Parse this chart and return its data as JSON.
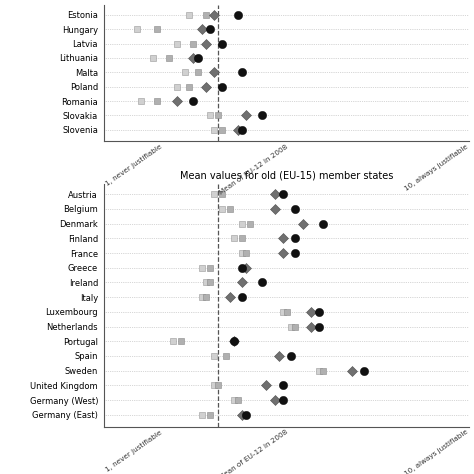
{
  "eu12_countries": [
    "Estonia",
    "Hungary",
    "Latvia",
    "Lithuania",
    "Malta",
    "Poland",
    "Romania",
    "Slovakia",
    "Slovenia"
  ],
  "eu15_countries": [
    "Austria",
    "Belgium",
    "Denmark",
    "Finland",
    "France",
    "Greece",
    "Ireland",
    "Italy",
    "Luxembourg",
    "Netherlands",
    "Portugal",
    "Spain",
    "Sweden",
    "United Kingdom",
    "Germany (West)",
    "Germany (East)"
  ],
  "eu12_sq1": [
    3.1,
    1.8,
    2.8,
    2.2,
    3.0,
    2.8,
    1.9,
    3.6,
    3.7
  ],
  "eu12_sq2": [
    3.5,
    2.3,
    3.2,
    2.6,
    3.3,
    3.1,
    2.3,
    3.8,
    3.9
  ],
  "eu12_diamond": [
    3.7,
    3.4,
    3.5,
    3.2,
    3.7,
    3.5,
    2.8,
    4.5,
    4.3
  ],
  "eu12_circle": [
    4.3,
    3.6,
    3.9,
    3.3,
    4.4,
    3.9,
    3.2,
    4.9,
    4.4
  ],
  "eu12_mean_line": 3.8,
  "eu15_sq1": [
    3.7,
    3.9,
    4.4,
    4.2,
    4.4,
    3.4,
    3.5,
    3.4,
    5.4,
    5.6,
    2.7,
    3.7,
    6.3,
    3.7,
    4.2,
    3.4
  ],
  "eu15_sq2": [
    3.9,
    4.1,
    4.6,
    4.4,
    4.5,
    3.6,
    3.6,
    3.5,
    5.5,
    5.7,
    2.9,
    4.0,
    6.4,
    3.8,
    4.3,
    3.6
  ],
  "eu15_diamond": [
    5.2,
    5.2,
    5.9,
    5.4,
    5.4,
    4.5,
    4.4,
    4.1,
    6.1,
    6.1,
    4.2,
    5.3,
    7.1,
    5.0,
    5.2,
    4.4
  ],
  "eu15_circle": [
    5.4,
    5.7,
    6.4,
    5.7,
    5.7,
    4.4,
    4.9,
    4.4,
    6.3,
    6.3,
    4.2,
    5.6,
    7.4,
    5.4,
    5.4,
    4.5
  ],
  "eu15_mean_line": 3.8,
  "title2": "Mean values for old (EU-15) member states",
  "xlabel_left": "1, never justifiable",
  "xlabel_right": "10, always justifiable",
  "xlabel_mid": "Mean of EU-12 in 2008"
}
